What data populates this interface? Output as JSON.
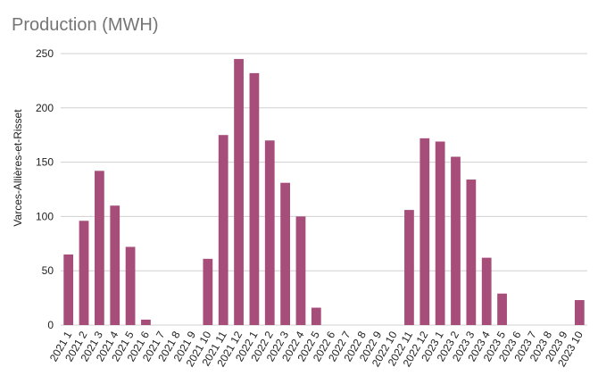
{
  "chart_data": {
    "type": "bar",
    "title": "Production (MWH)",
    "xlabel": "",
    "ylabel": "Varces-Allières-et-Risset",
    "ylim": [
      0,
      250
    ],
    "yticks": [
      0,
      50,
      100,
      150,
      200,
      250
    ],
    "grid": true,
    "bar_color": "#a64d79",
    "categories": [
      "2021 1",
      "2021 2",
      "2021 3",
      "2021 4",
      "2021 5",
      "2021 6",
      "2021 7",
      "2021 8",
      "2021 9",
      "2021 10",
      "2021 11",
      "2021 12",
      "2022 1",
      "2022 2",
      "2022 3",
      "2022 4",
      "2022 5",
      "2022 6",
      "2022 7",
      "2022 8",
      "2022 9",
      "2022 10",
      "2022 11",
      "2022 12",
      "2023 1",
      "2023 2",
      "2023 3",
      "2023 4",
      "2023 5",
      "2023 6",
      "2023 7",
      "2023 8",
      "2023 9",
      "2023 10"
    ],
    "values": [
      65,
      96,
      142,
      110,
      72,
      5,
      0,
      0,
      0,
      61,
      175,
      245,
      232,
      170,
      131,
      100,
      16,
      0,
      0,
      0,
      0,
      0,
      106,
      172,
      169,
      155,
      134,
      62,
      29,
      0,
      0,
      0,
      0,
      23
    ]
  }
}
